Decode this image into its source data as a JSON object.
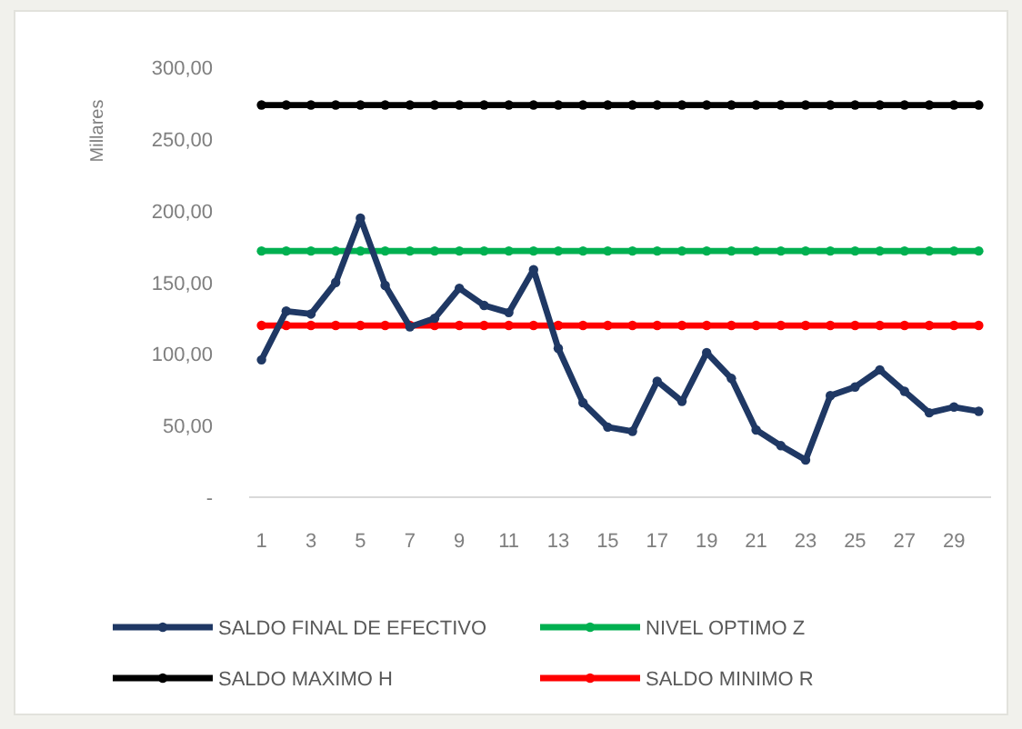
{
  "chart_data": {
    "type": "line",
    "ylabel": "Millares",
    "x": [
      1,
      2,
      3,
      4,
      5,
      6,
      7,
      8,
      9,
      10,
      11,
      12,
      13,
      14,
      15,
      16,
      17,
      18,
      19,
      20,
      21,
      22,
      23,
      24,
      25,
      26,
      27,
      28,
      29,
      30
    ],
    "xlim": [
      0.5,
      30.5
    ],
    "xticks": [
      1,
      3,
      5,
      7,
      9,
      11,
      13,
      15,
      17,
      19,
      21,
      23,
      25,
      27,
      29
    ],
    "series": [
      {
        "name": "SALDO FINAL DE EFECTIVO",
        "color": "#1f3864",
        "values": [
          96,
          130,
          128,
          150,
          195,
          148,
          119,
          125,
          146,
          134,
          129,
          159,
          104,
          66,
          49,
          46,
          81,
          67,
          101,
          83,
          47,
          36,
          26,
          71,
          77,
          89,
          74,
          59,
          63,
          60
        ]
      },
      {
        "name": "NIVEL OPTIMO Z",
        "color": "#00b050",
        "values": [
          172,
          172,
          172,
          172,
          172,
          172,
          172,
          172,
          172,
          172,
          172,
          172,
          172,
          172,
          172,
          172,
          172,
          172,
          172,
          172,
          172,
          172,
          172,
          172,
          172,
          172,
          172,
          172,
          172,
          172
        ]
      },
      {
        "name": "SALDO MAXIMO H",
        "color": "#000000",
        "values": [
          274,
          274,
          274,
          274,
          274,
          274,
          274,
          274,
          274,
          274,
          274,
          274,
          274,
          274,
          274,
          274,
          274,
          274,
          274,
          274,
          274,
          274,
          274,
          274,
          274,
          274,
          274,
          274,
          274,
          274
        ]
      },
      {
        "name": "SALDO MINIMO R",
        "color": "#ff0000",
        "values": [
          120,
          120,
          120,
          120,
          120,
          120,
          120,
          120,
          120,
          120,
          120,
          120,
          120,
          120,
          120,
          120,
          120,
          120,
          120,
          120,
          120,
          120,
          120,
          120,
          120,
          120,
          120,
          120,
          120,
          120
        ]
      }
    ],
    "ylim": [
      0,
      300
    ],
    "yticks": [
      {
        "value": 0,
        "label": "-"
      },
      {
        "value": 50,
        "label": "50,00"
      },
      {
        "value": 100,
        "label": "100,00"
      },
      {
        "value": 150,
        "label": "150,00"
      },
      {
        "value": 200,
        "label": "200,00"
      },
      {
        "value": 250,
        "label": "250,00"
      },
      {
        "value": 300,
        "label": "300,00"
      }
    ],
    "legend": "bottom",
    "marker": "circle"
  }
}
